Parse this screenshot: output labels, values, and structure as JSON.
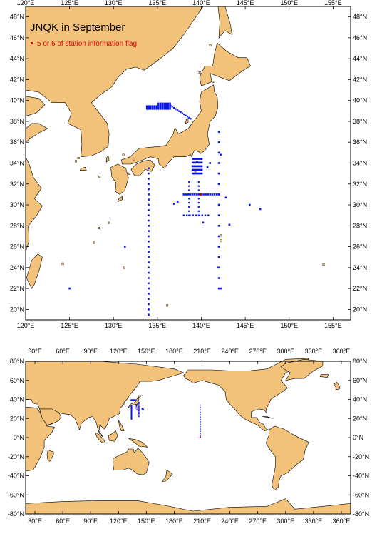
{
  "colors": {
    "land": "#f2c27b",
    "ocean": "#ffffff",
    "station": "#0a14f0",
    "flagged": "#e00000",
    "frame": "#000000"
  },
  "top_map": {
    "title": "JNQK in September",
    "legend_label": "5 or 6 of station information flag",
    "lon_range": [
      120,
      157
    ],
    "lat_range": [
      19,
      49
    ],
    "x_tick_labels": [
      "120°E",
      "125°E",
      "130°E",
      "135°E",
      "140°E",
      "145°E",
      "150°E",
      "155°E"
    ],
    "y_tick_labels": [
      "20°N",
      "22°N",
      "24°N",
      "26°N",
      "28°N",
      "30°N",
      "32°N",
      "34°N",
      "36°N",
      "38°N",
      "40°N",
      "42°N",
      "44°N",
      "46°N",
      "48°N"
    ],
    "stations": {
      "japan_sea_line_lat": 39.2,
      "japan_sea_line_lon": [
        133.8,
        136.5
      ],
      "line_134E_lon": 134.0,
      "line_134E_lat": [
        19.5,
        33.5
      ],
      "line_142E_lon": 142.0,
      "line_142E_lat": [
        22.0,
        37.0
      ],
      "zonal_31N_lat": 31.0,
      "zonal_31N_lon": [
        138.0,
        142.0
      ],
      "flagged_points": [
        [
          139.9,
          31.0
        ]
      ]
    }
  },
  "bottom_map": {
    "lon_range": [
      20,
      370
    ],
    "lat_range": [
      -80,
      80
    ],
    "x_tick_labels": [
      "30°E",
      "60°E",
      "90°E",
      "120°E",
      "150°E",
      "180°E",
      "210°E",
      "240°E",
      "270°E",
      "300°E",
      "330°E",
      "360°E"
    ],
    "y_tick_labels": [
      "-80°N",
      "-60°N",
      "-40°N",
      "-20°N",
      "0°N",
      "20°N",
      "40°N",
      "60°N",
      "80°N"
    ],
    "stations": {
      "pacific_line_lon": 208,
      "pacific_line_lat": [
        0,
        35
      ],
      "flagged_points": [
        [
          208,
          0
        ]
      ]
    }
  }
}
